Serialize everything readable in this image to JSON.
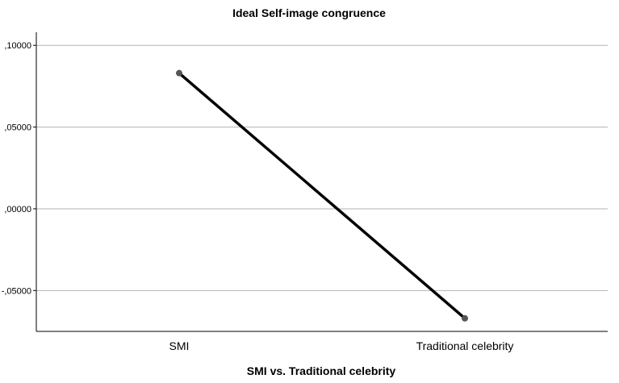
{
  "chart_data": {
    "type": "line",
    "title": "Ideal Self-image congruence",
    "xlabel": "SMI vs. Traditional celebrity",
    "ylabel": "",
    "categories": [
      "SMI",
      "Traditional celebrity"
    ],
    "series": [
      {
        "values": [
          0.083,
          -0.067
        ]
      }
    ],
    "yticks": [
      {
        "value": 0.1,
        "label": ",10000"
      },
      {
        "value": 0.05,
        "label": ",05000"
      },
      {
        "value": 0.0,
        "label": ",00000"
      },
      {
        "value": -0.05,
        "label": "-,05000"
      }
    ],
    "ylim": [
      -0.075,
      0.108
    ],
    "grid": true,
    "line_color": "#000000",
    "marker_color": "#555555",
    "grid_color": "#b3b3b3"
  }
}
